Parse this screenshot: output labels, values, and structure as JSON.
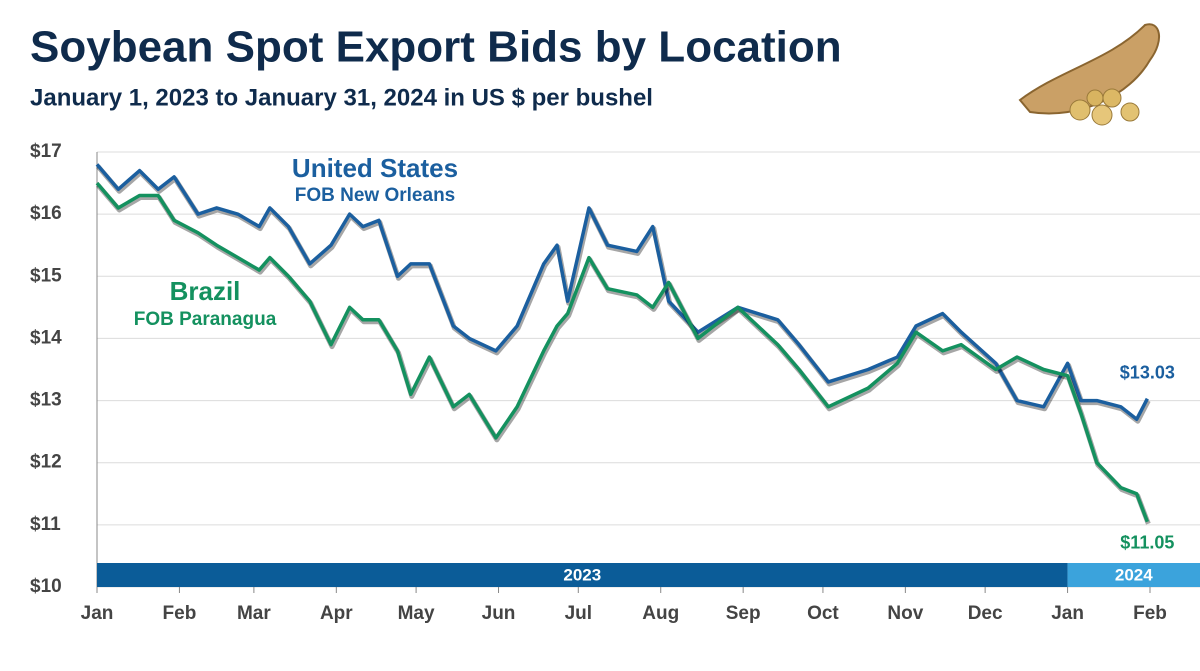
{
  "chart_data": {
    "type": "line",
    "title": "Soybean Spot Export Bids by Location",
    "subtitle": "January 1, 2023 to January 31, 2024 in US $ per bushel",
    "x": [
      0,
      8,
      16,
      23,
      29,
      38,
      45,
      53,
      61,
      65,
      72,
      80,
      88,
      95,
      100,
      106,
      113,
      118,
      125,
      134,
      140,
      150,
      158,
      168,
      173,
      177,
      185,
      192,
      203,
      209,
      215,
      226,
      241,
      256,
      264,
      275,
      290,
      301,
      308,
      318,
      325,
      338,
      346,
      356,
      365,
      370,
      376,
      385,
      391,
      395
    ],
    "xlim": [
      0,
      396
    ],
    "xticks": [
      {
        "value": 0,
        "label": "Jan"
      },
      {
        "value": 31,
        "label": "Feb"
      },
      {
        "value": 59,
        "label": "Mar"
      },
      {
        "value": 90,
        "label": "Apr"
      },
      {
        "value": 120,
        "label": "May"
      },
      {
        "value": 151,
        "label": "Jun"
      },
      {
        "value": 181,
        "label": "Jul"
      },
      {
        "value": 212,
        "label": "Aug"
      },
      {
        "value": 243,
        "label": "Sep"
      },
      {
        "value": 273,
        "label": "Oct"
      },
      {
        "value": 304,
        "label": "Nov"
      },
      {
        "value": 334,
        "label": "Dec"
      },
      {
        "value": 365,
        "label": "Jan"
      },
      {
        "value": 396,
        "label": "Feb"
      }
    ],
    "year_bands": [
      {
        "label": "2023",
        "start": 0,
        "end": 365,
        "color": "#0b5c98"
      },
      {
        "label": "2024",
        "start": 365,
        "end": 396,
        "color": "#3ba3dc"
      }
    ],
    "ylim": [
      10,
      17
    ],
    "yticks": [
      {
        "value": 10,
        "label": "$10"
      },
      {
        "value": 11,
        "label": "$11"
      },
      {
        "value": 12,
        "label": "$12"
      },
      {
        "value": 13,
        "label": "$13"
      },
      {
        "value": 14,
        "label": "$14"
      },
      {
        "value": 15,
        "label": "$15"
      },
      {
        "value": 16,
        "label": "$16"
      },
      {
        "value": 17,
        "label": "$17"
      }
    ],
    "grid": true,
    "series": [
      {
        "name": "United States",
        "sublabel": "FOB New Orleans",
        "color": "#1b5f9f",
        "values": [
          16.8,
          16.4,
          16.7,
          16.4,
          16.6,
          16.0,
          16.1,
          16.0,
          15.8,
          16.1,
          15.8,
          15.2,
          15.5,
          16.0,
          15.8,
          15.9,
          15.0,
          15.2,
          15.2,
          14.2,
          14.0,
          13.8,
          14.2,
          15.2,
          15.5,
          14.6,
          16.1,
          15.5,
          15.4,
          15.8,
          14.6,
          14.1,
          14.5,
          14.3,
          13.9,
          13.3,
          13.5,
          13.7,
          14.2,
          14.4,
          14.1,
          13.6,
          13.0,
          12.9,
          13.6,
          13.0,
          13.0,
          12.9,
          12.7,
          13.03
        ],
        "value_labels": [
          null,
          null,
          null,
          null,
          null,
          null,
          null,
          null,
          null,
          null,
          null,
          null,
          null,
          null,
          null,
          null,
          null,
          null,
          null,
          null,
          null,
          null,
          null,
          null,
          null,
          null,
          null,
          null,
          null,
          null,
          null,
          null,
          null,
          null,
          null,
          null,
          null,
          null,
          null,
          null,
          null,
          null,
          null,
          null,
          null,
          null,
          null,
          null,
          null,
          "$13.03"
        ]
      },
      {
        "name": "Brazil",
        "sublabel": "FOB Paranagua",
        "color": "#14915f",
        "values": [
          16.5,
          16.1,
          16.3,
          16.3,
          15.9,
          15.7,
          15.5,
          15.3,
          15.1,
          15.3,
          15.0,
          14.6,
          13.9,
          14.5,
          14.3,
          14.3,
          13.8,
          13.1,
          13.7,
          12.9,
          13.1,
          12.4,
          12.9,
          13.8,
          14.2,
          14.4,
          15.3,
          14.8,
          14.7,
          14.5,
          14.9,
          14.0,
          14.5,
          13.9,
          13.5,
          12.9,
          13.2,
          13.6,
          14.1,
          13.8,
          13.9,
          13.5,
          13.7,
          13.5,
          13.4,
          12.8,
          12.0,
          11.6,
          11.5,
          11.05
        ],
        "value_labels": [
          null,
          null,
          null,
          null,
          null,
          null,
          null,
          null,
          null,
          null,
          null,
          null,
          null,
          null,
          null,
          null,
          null,
          null,
          null,
          null,
          null,
          null,
          null,
          null,
          null,
          null,
          null,
          null,
          null,
          null,
          null,
          null,
          null,
          null,
          null,
          null,
          null,
          null,
          null,
          null,
          null,
          null,
          null,
          null,
          null,
          null,
          null,
          null,
          null,
          "$11.05"
        ]
      }
    ]
  }
}
